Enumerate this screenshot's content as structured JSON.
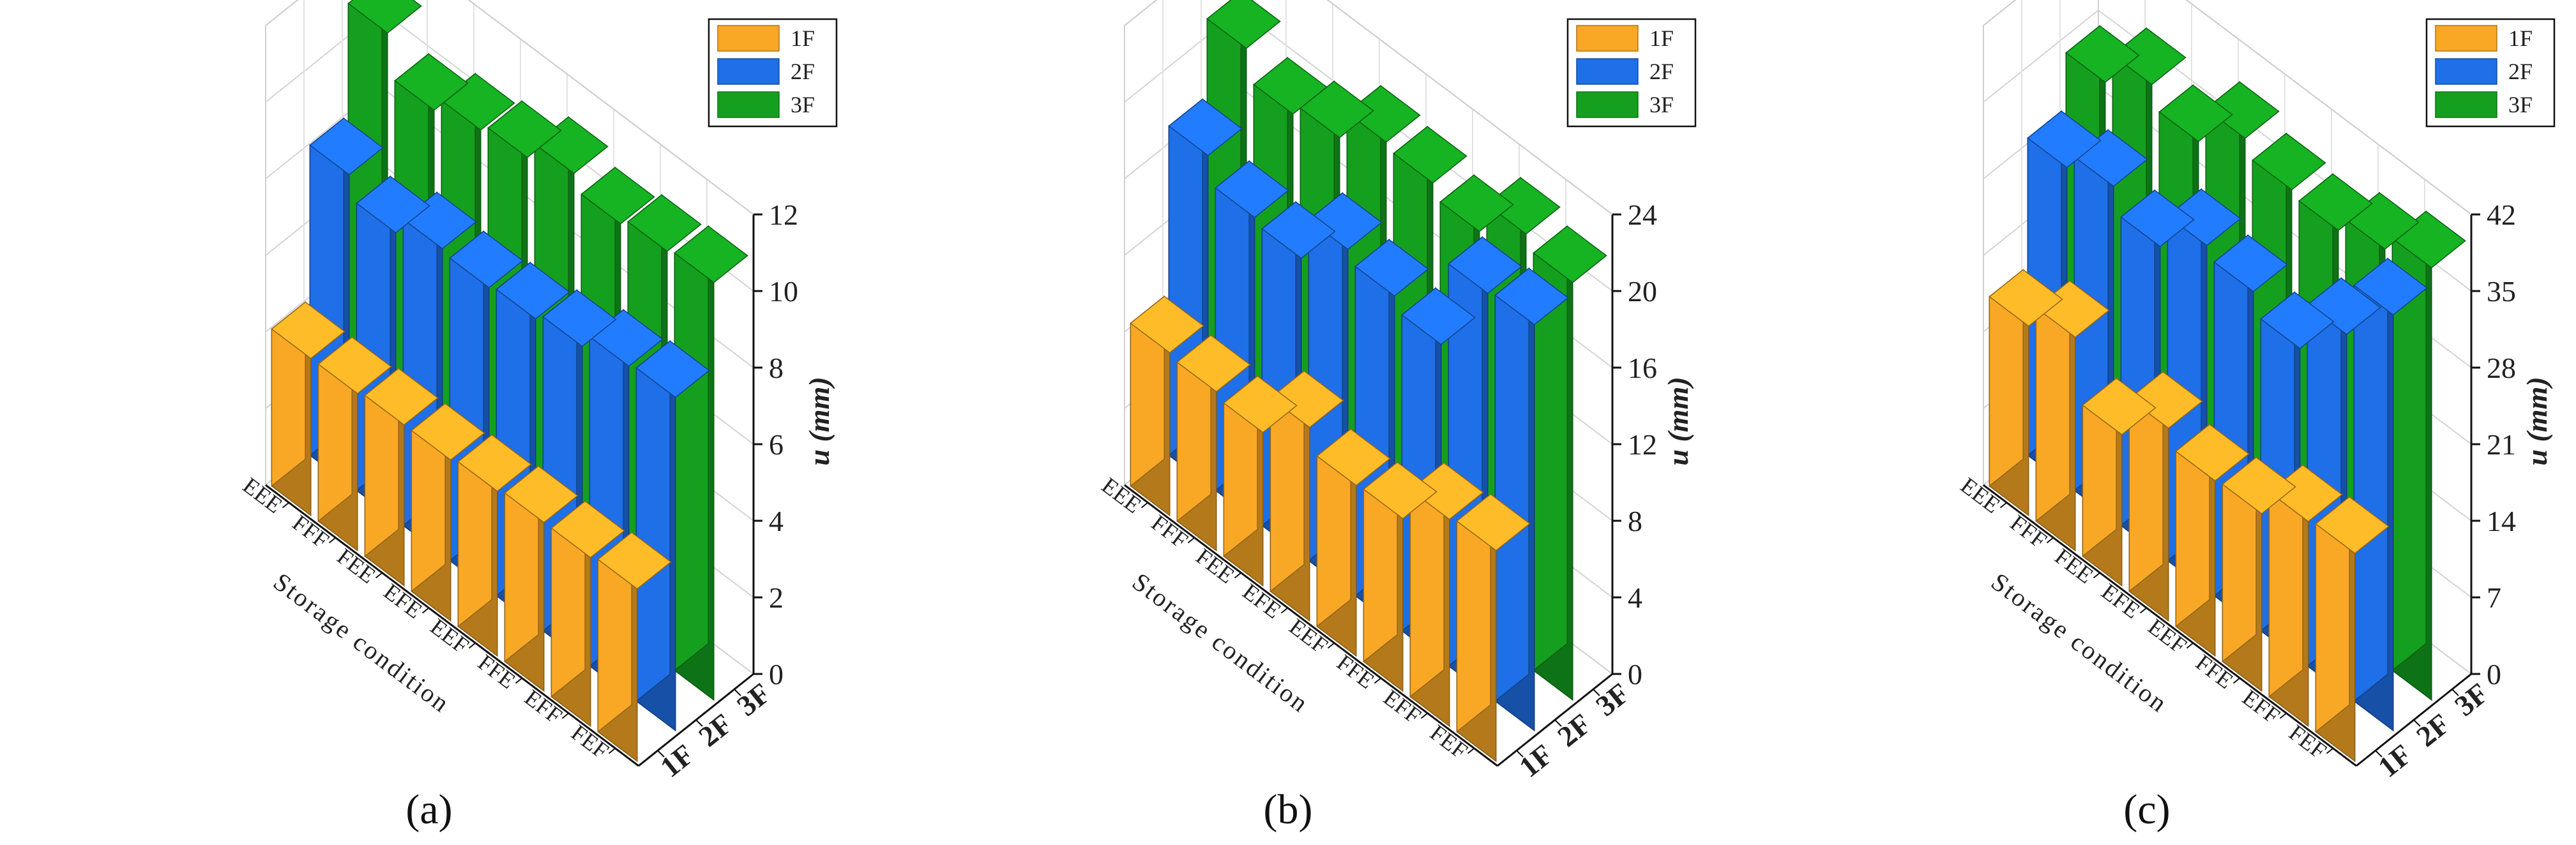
{
  "chart_data": [
    {
      "type": "bar",
      "panel_label": "(a)",
      "ylabel": "u (mm)",
      "xlabel": "Storage condition",
      "categories": [
        "FEF",
        "EFF",
        "FFE",
        "EEF",
        "EFE",
        "FEE",
        "FFF",
        "EEE"
      ],
      "floors": [
        "1F",
        "2F",
        "3F"
      ],
      "yticks": [
        0,
        2,
        4,
        6,
        8,
        10,
        12
      ],
      "ylim": [
        0,
        12
      ],
      "legend": [
        "1F",
        "2F",
        "3F"
      ],
      "legend_position": "top-right",
      "series": [
        {
          "name": "1F",
          "color": "#F9A825",
          "values": [
            4.5,
            4.4,
            4.4,
            4.3,
            4.2,
            4.2,
            4.1,
            4.1
          ]
        },
        {
          "name": "2F",
          "color": "#1E6FE8",
          "values": [
            8.7,
            8.6,
            8.2,
            8.0,
            7.9,
            8.0,
            7.5,
            8.1
          ]
        },
        {
          "name": "3F",
          "color": "#14A01E",
          "values": [
            10.9,
            10.8,
            10.6,
            11.0,
            10.5,
            10.3,
            9.9,
            11.0
          ]
        }
      ]
    },
    {
      "type": "bar",
      "panel_label": "(b)",
      "ylabel": "u (mm)",
      "xlabel": "Storage condition",
      "categories": [
        "FEF",
        "EFF",
        "FFE",
        "EEF",
        "EFE",
        "FEE",
        "FFF",
        "EEE"
      ],
      "floors": [
        "1F",
        "2F",
        "3F"
      ],
      "yticks": [
        0,
        4,
        8,
        12,
        16,
        20,
        24
      ],
      "ylim": [
        0,
        24
      ],
      "legend": [
        "1F",
        "2F",
        "3F"
      ],
      "legend_position": "top-right",
      "series": [
        {
          "name": "1F",
          "color": "#F9A825",
          "values": [
            11.0,
            10.8,
            9.0,
            8.9,
            10.1,
            8.0,
            8.3,
            8.5
          ]
        },
        {
          "name": "2F",
          "color": "#1E6FE8",
          "values": [
            21.2,
            21.0,
            16.5,
            17.2,
            17.8,
            15.5,
            15.8,
            17.2
          ]
        },
        {
          "name": "3F",
          "color": "#14A01E",
          "values": [
            21.8,
            22.5,
            20.8,
            21.5,
            21.8,
            20.2,
            19.6,
            21.2
          ]
        }
      ]
    },
    {
      "type": "bar",
      "panel_label": "(c)",
      "ylabel": "u (mm)",
      "xlabel": "Storage condition",
      "categories": [
        "FEF",
        "EFF",
        "FFE",
        "EEF",
        "EFE",
        "FEE",
        "FFF",
        "EEE"
      ],
      "floors": [
        "1F",
        "2F",
        "3F"
      ],
      "yticks": [
        0,
        7,
        14,
        21,
        28,
        35,
        42
      ],
      "ylim": [
        0,
        42
      ],
      "legend": [
        "1F",
        "2F",
        "3F"
      ],
      "legend_position": "top-right",
      "series": [
        {
          "name": "1F",
          "color": "#F9A825",
          "values": [
            19.0,
            18.7,
            16.2,
            16.0,
            17.6,
            13.8,
            19.5,
            17.3
          ]
        },
        {
          "name": "2F",
          "color": "#1E6FE8",
          "values": [
            38.0,
            33.0,
            28.5,
            30.5,
            31.5,
            28.2,
            30.5,
            29.0
          ]
        },
        {
          "name": "3F",
          "color": "#14A01E",
          "values": [
            39.5,
            38.0,
            36.5,
            37.0,
            38.5,
            35.0,
            37.0,
            34.0
          ]
        }
      ]
    }
  ]
}
